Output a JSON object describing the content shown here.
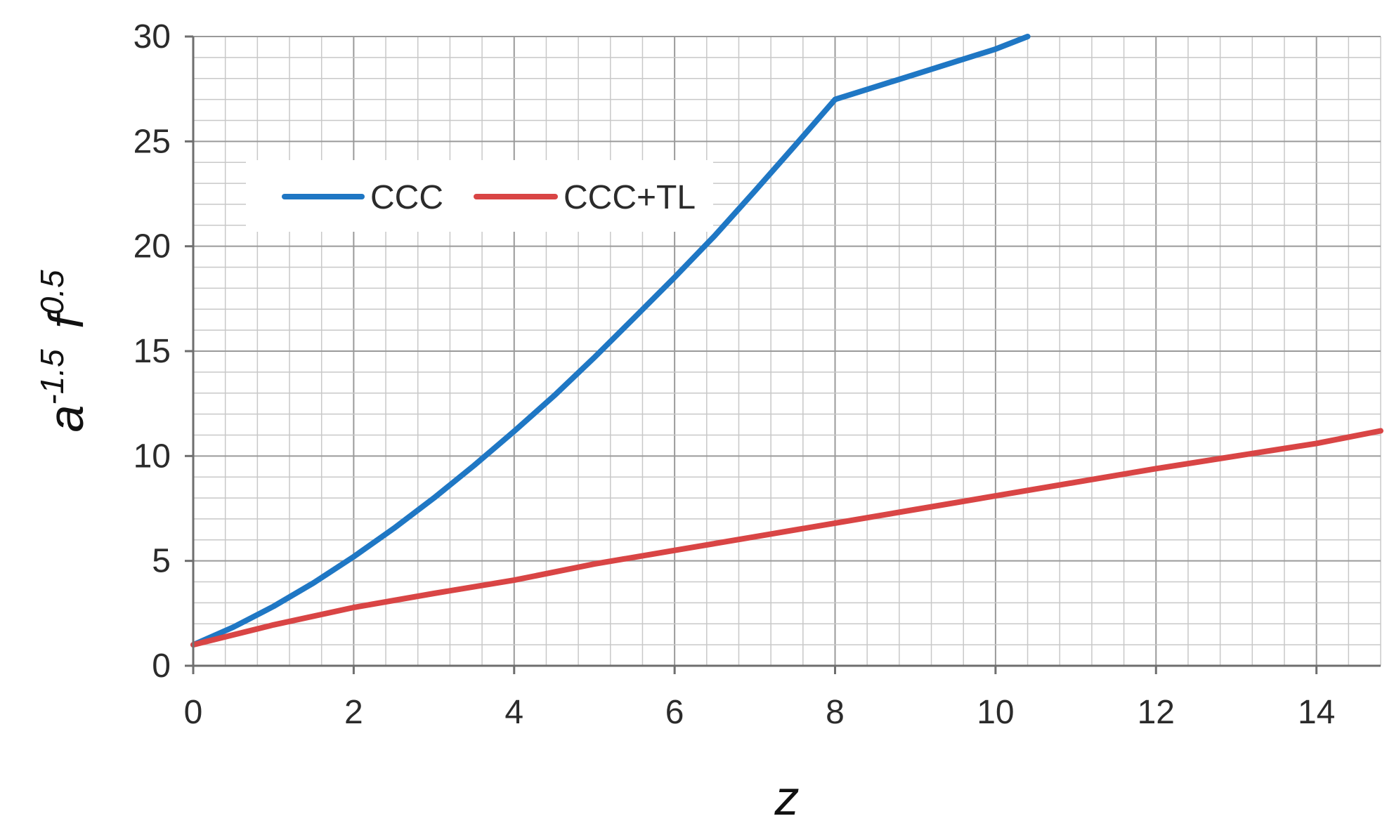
{
  "chart_data": {
    "type": "line",
    "title": "",
    "xlabel": "z",
    "ylabel": {
      "base_a": "a",
      "exp_a": "-1.5",
      "base_f": "f",
      "exp_f": "0.5"
    },
    "xlim": [
      0,
      14.8
    ],
    "ylim": [
      0,
      30
    ],
    "x_ticks": [
      0,
      2,
      4,
      6,
      8,
      10,
      12,
      14
    ],
    "y_ticks": [
      0,
      5,
      10,
      15,
      20,
      25,
      30
    ],
    "x_minor_step": 0.4,
    "y_minor_step": 1,
    "grid": true,
    "legend_position": "upper-left, horizontal",
    "series": [
      {
        "name": "CCC",
        "color": "#1f77c4",
        "x": [
          0,
          0.5,
          1,
          1.5,
          2,
          2.5,
          3,
          3.5,
          4,
          4.5,
          5,
          5.5,
          6,
          6.5,
          7,
          7.5,
          8,
          8.5,
          9,
          9.5,
          10,
          10.4
        ],
        "y": [
          1.0,
          1.84,
          2.83,
          3.95,
          5.2,
          6.55,
          8.0,
          9.55,
          11.18,
          12.88,
          14.7,
          16.6,
          18.52,
          20.5,
          22.63,
          24.8,
          27.0,
          27.6,
          28.2,
          28.8,
          29.4,
          30.0
        ]
      },
      {
        "name": "CCC+TL",
        "color": "#d94545",
        "x": [
          0,
          1,
          2,
          3,
          4,
          5,
          6,
          7,
          8,
          9,
          10,
          11,
          12,
          13,
          14,
          14.8
        ],
        "y": [
          1.0,
          1.95,
          2.78,
          3.45,
          4.08,
          4.85,
          5.5,
          6.15,
          6.8,
          7.45,
          8.1,
          8.75,
          9.4,
          10.0,
          10.6,
          11.2
        ]
      }
    ]
  }
}
